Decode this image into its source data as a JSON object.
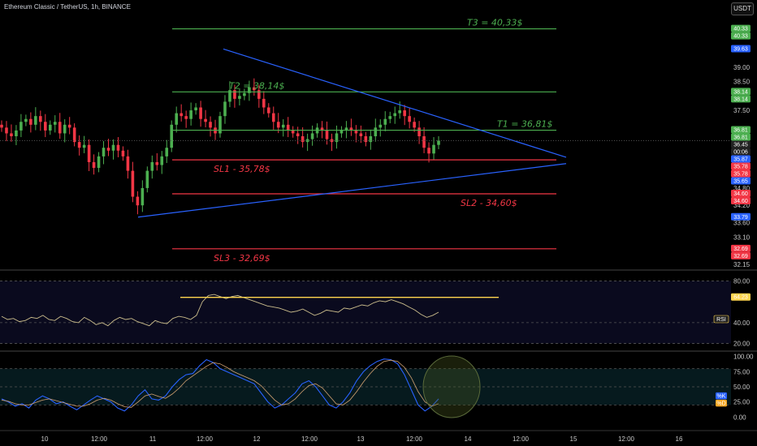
{
  "header": {
    "title": "Ethereum Classic / TetherUS, 1h, BINANCE",
    "currency_button": "USDT"
  },
  "colors": {
    "green": "#4caf50",
    "red": "#f23645",
    "blue": "#2962ff",
    "yellow": "#ffd54f",
    "bg": "#000000"
  },
  "chart_data": [
    {
      "type": "candlestick",
      "title": "Ethereum Classic / TetherUS, 1h, BINANCE",
      "x_tick_labels": [
        "10",
        "12:00",
        "11",
        "12:00",
        "12",
        "12:00",
        "13",
        "12:00",
        "14",
        "12:00",
        "15",
        "12:00",
        "16"
      ],
      "y_tick_labels": [
        "39.00",
        "38.50",
        "37.50",
        "36.00",
        "34.80",
        "34.20",
        "33.60",
        "33.10",
        "32.15"
      ],
      "ylim": [
        32.15,
        40.6
      ],
      "annotations": [
        {
          "label": "T3 = 40,33$",
          "value": 40.33,
          "color": "#4caf50"
        },
        {
          "label": "T2 = 38,14$",
          "value": 38.14,
          "color": "#4caf50"
        },
        {
          "label": "T1 = 36,81$",
          "value": 36.81,
          "color": "#4caf50"
        },
        {
          "label": "SL1 - 35,78$",
          "value": 35.78,
          "color": "#f23645"
        },
        {
          "label": "SL2 - 34,60$",
          "value": 34.6,
          "color": "#f23645"
        },
        {
          "label": "SL3 - 32,69$",
          "value": 32.69,
          "color": "#f23645"
        }
      ],
      "price_badges": [
        {
          "text": "40.33",
          "color": "#4caf50"
        },
        {
          "text": "40.33",
          "color": "#4caf50"
        },
        {
          "text": "39.63",
          "color": "#2962ff"
        },
        {
          "text": "38.14",
          "color": "#4caf50"
        },
        {
          "text": "38.14",
          "color": "#4caf50"
        },
        {
          "text": "36.81",
          "color": "#4caf50"
        },
        {
          "text": "36.81",
          "color": "#4caf50"
        },
        {
          "text": "36.45",
          "color": "#222222"
        },
        {
          "text": "00:06",
          "color": "#222222"
        },
        {
          "text": "35.87",
          "color": "#2962ff"
        },
        {
          "text": "35.78",
          "color": "#f23645"
        },
        {
          "text": "35.78",
          "color": "#f23645"
        },
        {
          "text": "35.65",
          "color": "#2962ff"
        },
        {
          "text": "34.60",
          "color": "#f23645"
        },
        {
          "text": "34.60",
          "color": "#f23645"
        },
        {
          "text": "33.79",
          "color": "#2962ff"
        },
        {
          "text": "32.69",
          "color": "#f23645"
        },
        {
          "text": "32.69",
          "color": "#f23645"
        }
      ],
      "close_series": [
        36.9,
        36.7,
        36.6,
        36.8,
        37.1,
        37.2,
        37.0,
        37.3,
        37.1,
        36.8,
        37.0,
        37.1,
        36.7,
        37.0,
        36.9,
        36.4,
        36.2,
        36.3,
        35.7,
        35.5,
        35.9,
        36.2,
        36.1,
        36.3,
        36.1,
        35.9,
        35.4,
        34.5,
        34.2,
        34.8,
        35.4,
        35.7,
        35.6,
        35.9,
        36.2,
        37.0,
        37.4,
        37.3,
        37.2,
        37.5,
        37.6,
        37.2,
        37.1,
        36.9,
        36.7,
        37.3,
        37.8,
        38.2,
        37.9,
        38.0,
        38.1,
        38.3,
        38.2,
        37.9,
        37.6,
        37.4,
        37.1,
        36.9,
        37.0,
        36.8,
        36.7,
        36.6,
        36.4,
        36.5,
        36.7,
        36.9,
        36.8,
        36.5,
        36.4,
        36.7,
        36.8,
        36.9,
        36.8,
        36.7,
        36.6,
        36.4,
        36.6,
        36.9,
        37.0,
        37.2,
        37.3,
        37.4,
        37.5,
        37.3,
        37.1,
        36.9,
        36.6,
        36.2,
        36.0,
        36.3,
        36.45
      ],
      "triangle_upper": {
        "from": {
          "x_index": 50,
          "value": 39.63
        },
        "to": {
          "x_index": 130,
          "value": 35.87
        }
      },
      "triangle_lower": {
        "from": {
          "x_index": 32,
          "value": 33.79
        },
        "to": {
          "x_index": 130,
          "value": 35.65
        }
      }
    },
    {
      "type": "line",
      "name": "RSI",
      "y_tick_labels": [
        "80.00",
        "64.23",
        "40.00",
        "20.00"
      ],
      "ylim": [
        15,
        85
      ],
      "badge": "64.23",
      "resistance_value": 64.23,
      "values": [
        46,
        43,
        44,
        41,
        42,
        45,
        44,
        47,
        43,
        42,
        46,
        44,
        41,
        40,
        45,
        42,
        38,
        40,
        37,
        42,
        45,
        43,
        44,
        41,
        39,
        37,
        42,
        40,
        39,
        44,
        46,
        45,
        43,
        47,
        60,
        66,
        67,
        65,
        63,
        65,
        66,
        64,
        62,
        60,
        58,
        56,
        55,
        54,
        52,
        50,
        51,
        53,
        50,
        47,
        49,
        52,
        51,
        50,
        54,
        53,
        55,
        57,
        56,
        59,
        61,
        60,
        62,
        60,
        58,
        55,
        52,
        48,
        45,
        47,
        50
      ]
    },
    {
      "type": "line",
      "name": "Stoch",
      "series": [
        {
          "name": "%K",
          "values": [
            30,
            25,
            18,
            22,
            15,
            28,
            35,
            30,
            22,
            25,
            18,
            12,
            20,
            28,
            35,
            30,
            25,
            15,
            10,
            20,
            35,
            45,
            30,
            28,
            35,
            50,
            62,
            70,
            72,
            85,
            95,
            90,
            80,
            75,
            70,
            65,
            60,
            55,
            40,
            25,
            15,
            20,
            30,
            40,
            55,
            60,
            50,
            35,
            20,
            15,
            25,
            40,
            60,
            75,
            85,
            92,
            96,
            95,
            88,
            70,
            45,
            20,
            10,
            18,
            30
          ]
        },
        {
          "name": "%D",
          "values": [
            28,
            26,
            22,
            20,
            20,
            24,
            28,
            30,
            27,
            24,
            21,
            18,
            18,
            22,
            28,
            31,
            28,
            22,
            17,
            16,
            25,
            35,
            38,
            34,
            31,
            38,
            48,
            60,
            68,
            76,
            84,
            90,
            88,
            82,
            75,
            70,
            65,
            60,
            52,
            40,
            28,
            20,
            22,
            30,
            42,
            52,
            55,
            48,
            35,
            22,
            20,
            28,
            42,
            58,
            72,
            84,
            92,
            94,
            92,
            82,
            65,
            42,
            25,
            18,
            22
          ]
        }
      ],
      "y_tick_labels": [
        "100.00",
        "75.00",
        "50.00",
        "25.00",
        "0.00"
      ],
      "ylim": [
        -5,
        105
      ],
      "badges": [
        "%K",
        "%D"
      ]
    }
  ]
}
